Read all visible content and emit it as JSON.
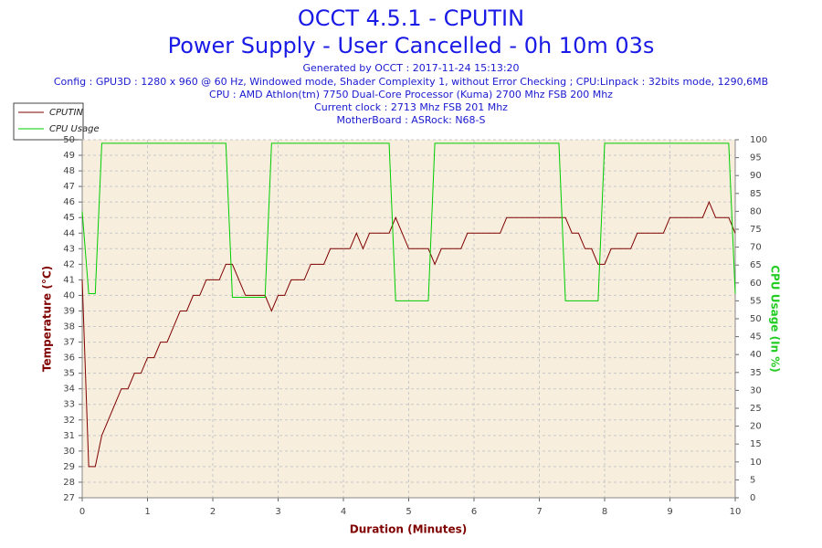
{
  "chart_data": {
    "type": "line",
    "title": "OCCT 4.5.1 - CPUTIN",
    "subtitle": "Power Supply - User Cancelled - 0h 10m 03s",
    "info": [
      "Generated by OCCT : 2017-11-24 15:13:20",
      "Config : GPU3D : 1280 x 960 @ 60 Hz, Windowed mode, Shader Complexity 1, without Error Checking ; CPU:Linpack : 32bits mode, 1290,6MB",
      "CPU : AMD Athlon(tm) 7750 Dual-Core Processor (Kuma) 2700 Mhz FSB 200 Mhz",
      "Current clock : 2713 Mhz FSB 201 Mhz",
      "MotherBoard : ASRock: N68-S"
    ],
    "xlabel": "Duration (Minutes)",
    "ylabel": "Temperature (°C)",
    "y2label": "CPU Usage (In %)",
    "x": [
      0,
      0.1,
      0.2,
      0.3,
      0.4,
      0.5,
      0.6,
      0.7,
      0.8,
      0.9,
      1,
      1.1,
      1.2,
      1.3,
      1.4,
      1.5,
      1.6,
      1.7,
      1.8,
      1.9,
      2,
      2.1,
      2.2,
      2.3,
      2.4,
      2.5,
      2.6,
      2.7,
      2.8,
      2.9,
      3,
      3.1,
      3.2,
      3.3,
      3.4,
      3.5,
      3.6,
      3.7,
      3.8,
      3.9,
      4,
      4.1,
      4.2,
      4.3,
      4.4,
      4.5,
      4.6,
      4.7,
      4.8,
      4.9,
      5,
      5.1,
      5.2,
      5.3,
      5.4,
      5.5,
      5.6,
      5.7,
      5.8,
      5.9,
      6,
      6.1,
      6.2,
      6.3,
      6.4,
      6.5,
      6.6,
      6.7,
      6.8,
      6.9,
      7,
      7.1,
      7.2,
      7.3,
      7.4,
      7.5,
      7.6,
      7.7,
      7.8,
      7.9,
      8,
      8.1,
      8.2,
      8.3,
      8.4,
      8.5,
      8.6,
      8.7,
      8.8,
      8.9,
      9,
      9.1,
      9.2,
      9.3,
      9.4,
      9.5,
      9.6,
      9.7,
      9.8,
      9.9,
      10
    ],
    "series": [
      {
        "name": "CPUTIN",
        "color": "#800000",
        "axis": "y",
        "values": [
          41,
          29,
          29,
          31,
          32,
          33,
          34,
          34,
          35,
          35,
          36,
          36,
          37,
          37,
          38,
          39,
          39,
          40,
          40,
          41,
          41,
          41,
          42,
          42,
          41,
          40,
          40,
          40,
          40,
          39,
          40,
          40,
          41,
          41,
          41,
          42,
          42,
          42,
          43,
          43,
          43,
          43,
          44,
          43,
          44,
          44,
          44,
          44,
          45,
          44,
          43,
          43,
          43,
          43,
          42,
          43,
          43,
          43,
          43,
          44,
          44,
          44,
          44,
          44,
          44,
          45,
          45,
          45,
          45,
          45,
          45,
          45,
          45,
          45,
          45,
          44,
          44,
          43,
          43,
          42,
          42,
          43,
          43,
          43,
          43,
          44,
          44,
          44,
          44,
          44,
          45,
          45,
          45,
          45,
          45,
          45,
          46,
          45,
          45,
          45,
          44
        ]
      },
      {
        "name": "CPU Usage",
        "color": "#00cc00",
        "axis": "y2",
        "values": [
          80,
          57,
          57,
          99,
          99,
          99,
          99,
          99,
          99,
          99,
          99,
          99,
          99,
          99,
          99,
          99,
          99,
          99,
          99,
          99,
          99,
          99,
          99,
          56,
          56,
          56,
          56,
          56,
          56,
          99,
          99,
          99,
          99,
          99,
          99,
          99,
          99,
          99,
          99,
          99,
          99,
          99,
          99,
          99,
          99,
          99,
          99,
          99,
          55,
          55,
          55,
          55,
          55,
          55,
          99,
          99,
          99,
          99,
          99,
          99,
          99,
          99,
          99,
          99,
          99,
          99,
          99,
          99,
          99,
          99,
          99,
          99,
          99,
          99,
          55,
          55,
          55,
          55,
          55,
          55,
          99,
          99,
          99,
          99,
          99,
          99,
          99,
          99,
          99,
          99,
          99,
          99,
          99,
          99,
          99,
          99,
          99,
          99,
          99,
          99,
          57
        ]
      }
    ],
    "xlim": [
      0,
      10
    ],
    "xticks": [
      0,
      1,
      2,
      3,
      4,
      5,
      6,
      7,
      8,
      9,
      10
    ],
    "ylim": [
      27,
      50
    ],
    "yticks": [
      27,
      28,
      29,
      30,
      31,
      32,
      33,
      34,
      35,
      36,
      37,
      38,
      39,
      40,
      41,
      42,
      43,
      44,
      45,
      46,
      47,
      48,
      49,
      50
    ],
    "y2lim": [
      0,
      100
    ],
    "y2ticks": [
      0,
      5,
      10,
      15,
      20,
      25,
      30,
      35,
      40,
      45,
      50,
      55,
      60,
      65,
      70,
      75,
      80,
      85,
      90,
      95,
      100
    ],
    "grid": true
  }
}
